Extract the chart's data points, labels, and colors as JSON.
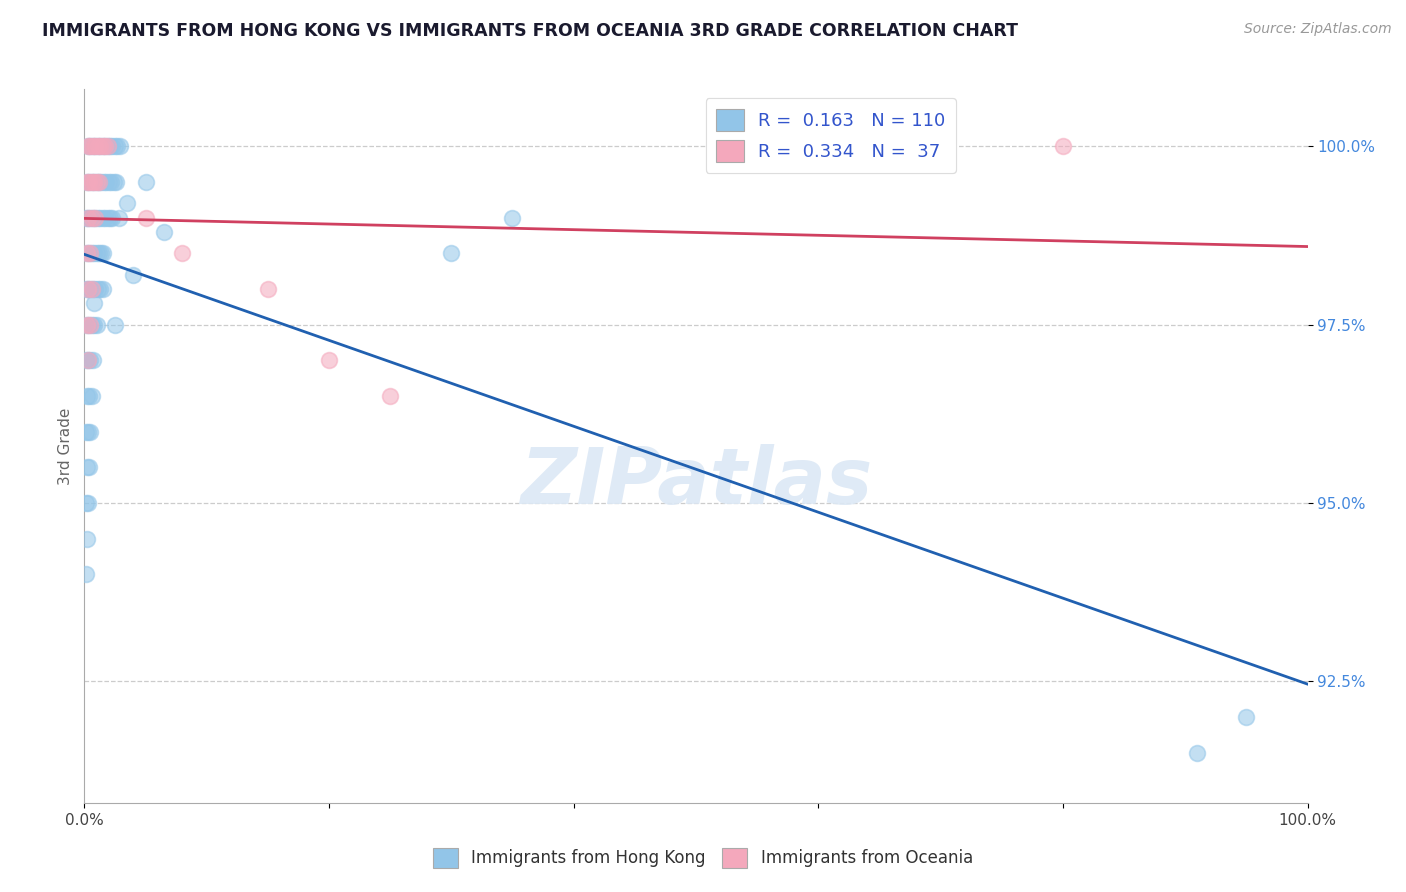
{
  "title": "IMMIGRANTS FROM HONG KONG VS IMMIGRANTS FROM OCEANIA 3RD GRADE CORRELATION CHART",
  "source": "Source: ZipAtlas.com",
  "ylabel": "3rd Grade",
  "ylim": [
    90.8,
    100.8
  ],
  "xlim": [
    0,
    100
  ],
  "yticks": [
    92.5,
    95.0,
    97.5,
    100.0
  ],
  "ytick_labels": [
    "92.5%",
    "95.0%",
    "97.5%",
    "100.0%"
  ],
  "R_blue": 0.163,
  "N_blue": 110,
  "R_pink": 0.334,
  "N_pink": 37,
  "color_blue": "#92C5E8",
  "color_pink": "#F4A8BC",
  "line_blue": "#2060B0",
  "line_pink": "#D04060",
  "background_color": "#FFFFFF",
  "title_color": "#1A1A2E",
  "legend_label_blue": "Immigrants from Hong Kong",
  "legend_label_pink": "Immigrants from Oceania",
  "blue_x": [
    0.3,
    0.5,
    0.7,
    0.9,
    1.1,
    1.3,
    1.5,
    1.7,
    1.9,
    2.1,
    2.3,
    2.5,
    2.7,
    2.9,
    0.2,
    0.4,
    0.6,
    0.8,
    1.0,
    1.2,
    1.4,
    1.6,
    1.8,
    2.0,
    2.2,
    2.4,
    2.6,
    0.1,
    0.3,
    0.5,
    0.7,
    0.9,
    1.1,
    1.3,
    1.5,
    1.7,
    1.9,
    2.1,
    2.3,
    0.2,
    0.4,
    0.6,
    0.8,
    1.0,
    1.2,
    1.4,
    0.1,
    0.3,
    0.5,
    0.7,
    0.9,
    1.1,
    1.3,
    0.2,
    0.4,
    0.6,
    0.8,
    1.0,
    0.1,
    0.3,
    0.5,
    0.7,
    0.2,
    0.4,
    0.6,
    0.1,
    0.3,
    0.5,
    0.2,
    0.4,
    0.1,
    0.3,
    0.2,
    0.1,
    3.5,
    5.0,
    6.5,
    1.5,
    2.8,
    4.0,
    0.8,
    1.5,
    2.5,
    30.0,
    35.0,
    91.0,
    95.0
  ],
  "blue_y": [
    100.0,
    100.0,
    100.0,
    100.0,
    100.0,
    100.0,
    100.0,
    100.0,
    100.0,
    100.0,
    100.0,
    100.0,
    100.0,
    100.0,
    99.5,
    99.5,
    99.5,
    99.5,
    99.5,
    99.5,
    99.5,
    99.5,
    99.5,
    99.5,
    99.5,
    99.5,
    99.5,
    99.0,
    99.0,
    99.0,
    99.0,
    99.0,
    99.0,
    99.0,
    99.0,
    99.0,
    99.0,
    99.0,
    99.0,
    98.5,
    98.5,
    98.5,
    98.5,
    98.5,
    98.5,
    98.5,
    98.0,
    98.0,
    98.0,
    98.0,
    98.0,
    98.0,
    98.0,
    97.5,
    97.5,
    97.5,
    97.5,
    97.5,
    97.0,
    97.0,
    97.0,
    97.0,
    96.5,
    96.5,
    96.5,
    96.0,
    96.0,
    96.0,
    95.5,
    95.5,
    95.0,
    95.0,
    94.5,
    94.0,
    99.2,
    99.5,
    98.8,
    98.5,
    99.0,
    98.2,
    97.8,
    98.0,
    97.5,
    98.5,
    99.0,
    91.5,
    92.0
  ],
  "pink_x": [
    0.3,
    0.5,
    0.7,
    0.9,
    1.1,
    1.3,
    1.5,
    1.7,
    1.9,
    0.2,
    0.4,
    0.6,
    0.8,
    1.0,
    1.2,
    0.3,
    0.6,
    0.9,
    0.2,
    0.5,
    0.3,
    0.6,
    0.2,
    0.5,
    0.3,
    5.0,
    8.0,
    15.0,
    20.0,
    25.0,
    80.0
  ],
  "pink_y": [
    100.0,
    100.0,
    100.0,
    100.0,
    100.0,
    100.0,
    100.0,
    100.0,
    100.0,
    99.5,
    99.5,
    99.5,
    99.5,
    99.5,
    99.5,
    99.0,
    99.0,
    99.0,
    98.5,
    98.5,
    98.0,
    98.0,
    97.5,
    97.5,
    97.0,
    99.0,
    98.5,
    98.0,
    97.0,
    96.5,
    100.0
  ]
}
